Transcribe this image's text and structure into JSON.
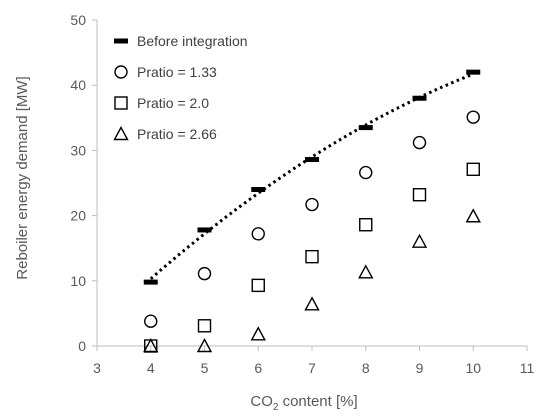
{
  "chart_data": {
    "type": "scatter",
    "title": "",
    "xlabel": {
      "main": "CO",
      "sub": "2",
      "rest": " content [%]"
    },
    "ylabel": "Reboiler energy demand [MW]",
    "xlim": [
      3,
      11
    ],
    "ylim": [
      0,
      50
    ],
    "xticks": [
      3,
      4,
      5,
      6,
      7,
      8,
      9,
      10,
      11
    ],
    "yticks": [
      0,
      10,
      20,
      30,
      40,
      50
    ],
    "grid": false,
    "legend_position": "top-left",
    "series": [
      {
        "name": "Before integration",
        "marker": "dash",
        "x": [
          4,
          5,
          6,
          7,
          8,
          9,
          10
        ],
        "y": [
          9.8,
          17.8,
          24.0,
          28.6,
          33.5,
          38.0,
          42.0
        ]
      },
      {
        "name": "Pratio = 1.33",
        "marker": "circle",
        "x": [
          4,
          5,
          6,
          7,
          8,
          9,
          10
        ],
        "y": [
          3.8,
          11.1,
          17.2,
          21.7,
          26.6,
          31.2,
          35.1
        ]
      },
      {
        "name": "Pratio = 2.0",
        "marker": "square",
        "x": [
          4,
          5,
          6,
          7,
          8,
          9,
          10
        ],
        "y": [
          0.0,
          3.1,
          9.3,
          13.7,
          18.6,
          23.2,
          27.1
        ]
      },
      {
        "name": "Pratio = 2.66",
        "marker": "triangle",
        "x": [
          4,
          5,
          6,
          7,
          8,
          9,
          10
        ],
        "y": [
          0.0,
          0.0,
          1.8,
          6.4,
          11.3,
          16.0,
          19.9
        ]
      }
    ],
    "trendline": {
      "of_series": "Before integration",
      "style": "dotted",
      "x_from": 4,
      "x_to": 10,
      "y_from": 10.2,
      "y_to": 41.8
    },
    "colors": {
      "markers": "#000000",
      "axis": "#bfbfbf",
      "text": "#595959"
    }
  }
}
